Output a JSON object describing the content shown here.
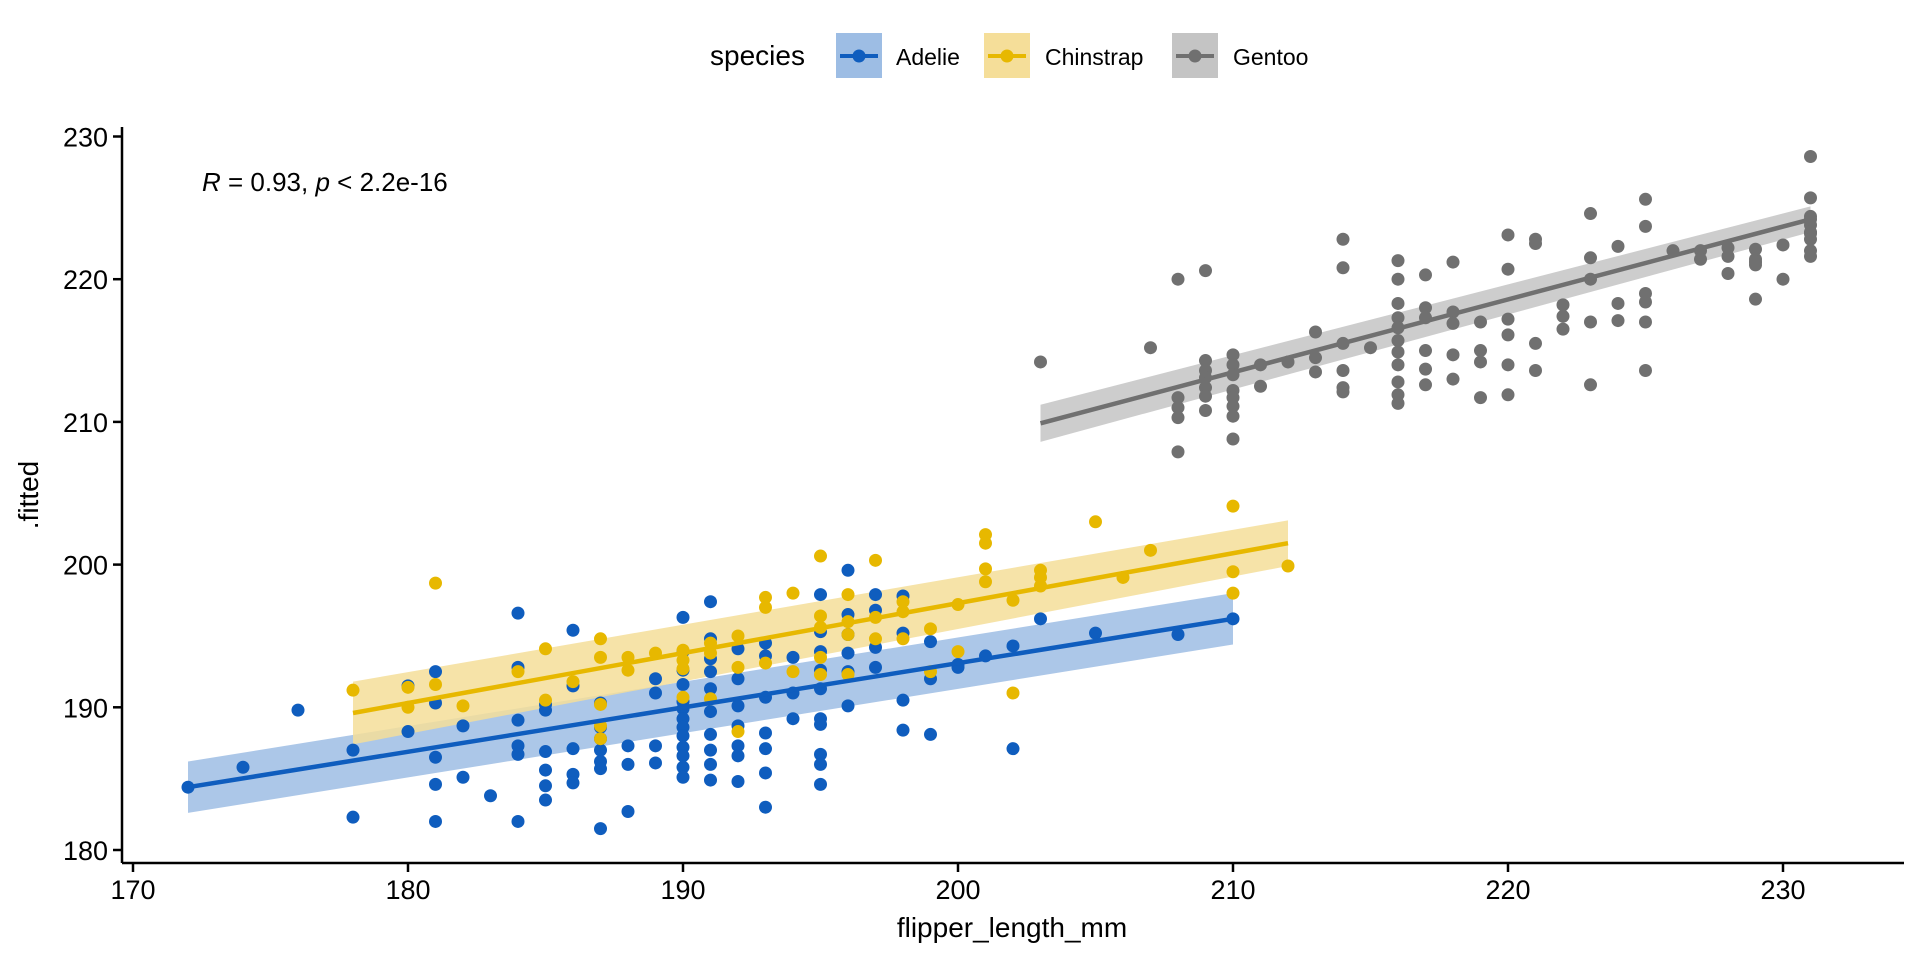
{
  "chart_data": {
    "type": "scatter",
    "xlabel": "flipper_length_mm",
    "ylabel": ".fitted",
    "xlim": [
      169.5,
      234.0
    ],
    "ylim": [
      179.3,
      230.5
    ],
    "x_ticks": [
      170,
      180,
      190,
      200,
      210,
      220,
      230
    ],
    "y_ticks": [
      180,
      190,
      200,
      210,
      220,
      230
    ],
    "annotation": {
      "r_symbol": "R",
      "r_text": " = 0.93, ",
      "p_symbol": "p",
      "p_text": " < 2.2e-16"
    },
    "legend": {
      "title": "species",
      "position": "top"
    },
    "grid": false,
    "series": [
      {
        "name": "Adelie",
        "color": "#0F5DBE",
        "band_color": "#9DBDE4",
        "fit": {
          "x": [
            172,
            210
          ],
          "y": [
            184.4,
            196.2
          ],
          "se_lo": [
            182.6,
            194.4
          ],
          "se_hi": [
            186.2,
            198.0
          ]
        },
        "points": [
          [
            172,
            184.4
          ],
          [
            174,
            185.8
          ],
          [
            176,
            189.8
          ],
          [
            178,
            187.0
          ],
          [
            178,
            182.3
          ],
          [
            180,
            191.5
          ],
          [
            180,
            188.3
          ],
          [
            181,
            192.5
          ],
          [
            181,
            190.3
          ],
          [
            181,
            186.5
          ],
          [
            181,
            184.6
          ],
          [
            181,
            182.0
          ],
          [
            182,
            188.7
          ],
          [
            182,
            185.1
          ],
          [
            183,
            183.8
          ],
          [
            184,
            196.6
          ],
          [
            184,
            192.8
          ],
          [
            184,
            189.1
          ],
          [
            184,
            187.3
          ],
          [
            184,
            186.7
          ],
          [
            184,
            182.0
          ],
          [
            185,
            190.2
          ],
          [
            185,
            189.8
          ],
          [
            185,
            186.9
          ],
          [
            185,
            185.6
          ],
          [
            185,
            184.5
          ],
          [
            185,
            183.5
          ],
          [
            186,
            195.4
          ],
          [
            186,
            191.5
          ],
          [
            186,
            187.1
          ],
          [
            186,
            185.3
          ],
          [
            186,
            184.7
          ],
          [
            187,
            190.3
          ],
          [
            187,
            188.6
          ],
          [
            187,
            187.8
          ],
          [
            187,
            187.0
          ],
          [
            187,
            186.2
          ],
          [
            187,
            185.7
          ],
          [
            187,
            181.5
          ],
          [
            188,
            187.3
          ],
          [
            188,
            186.0
          ],
          [
            188,
            182.7
          ],
          [
            189,
            192.0
          ],
          [
            189,
            191.0
          ],
          [
            189,
            187.3
          ],
          [
            189,
            186.1
          ],
          [
            190,
            196.3
          ],
          [
            190,
            193.9
          ],
          [
            190,
            192.6
          ],
          [
            190,
            191.6
          ],
          [
            190,
            190.4
          ],
          [
            190,
            189.9
          ],
          [
            190,
            189.2
          ],
          [
            190,
            188.6
          ],
          [
            190,
            188.0
          ],
          [
            190,
            187.2
          ],
          [
            190,
            186.6
          ],
          [
            190,
            185.8
          ],
          [
            190,
            185.1
          ],
          [
            191,
            197.4
          ],
          [
            191,
            194.8
          ],
          [
            191,
            193.4
          ],
          [
            191,
            192.5
          ],
          [
            191,
            191.3
          ],
          [
            191,
            189.7
          ],
          [
            191,
            188.1
          ],
          [
            191,
            187.0
          ],
          [
            191,
            186.0
          ],
          [
            191,
            184.9
          ],
          [
            192,
            194.1
          ],
          [
            192,
            192.0
          ],
          [
            192,
            190.1
          ],
          [
            192,
            188.7
          ],
          [
            192,
            187.3
          ],
          [
            192,
            186.6
          ],
          [
            192,
            184.8
          ],
          [
            193,
            194.5
          ],
          [
            193,
            193.6
          ],
          [
            193,
            190.7
          ],
          [
            193,
            188.2
          ],
          [
            193,
            187.1
          ],
          [
            193,
            185.4
          ],
          [
            193,
            183.0
          ],
          [
            194,
            193.5
          ],
          [
            194,
            191.0
          ],
          [
            194,
            189.2
          ],
          [
            195,
            197.9
          ],
          [
            195,
            195.3
          ],
          [
            195,
            193.9
          ],
          [
            195,
            192.6
          ],
          [
            195,
            191.3
          ],
          [
            195,
            189.2
          ],
          [
            195,
            188.8
          ],
          [
            195,
            186.7
          ],
          [
            195,
            186.0
          ],
          [
            195,
            184.6
          ],
          [
            196,
            199.6
          ],
          [
            196,
            196.5
          ],
          [
            196,
            195.1
          ],
          [
            196,
            193.8
          ],
          [
            196,
            192.5
          ],
          [
            196,
            190.1
          ],
          [
            197,
            197.9
          ],
          [
            197,
            196.8
          ],
          [
            197,
            194.2
          ],
          [
            197,
            192.8
          ],
          [
            198,
            197.8
          ],
          [
            198,
            195.2
          ],
          [
            198,
            190.5
          ],
          [
            198,
            188.4
          ],
          [
            199,
            194.6
          ],
          [
            199,
            192.0
          ],
          [
            199,
            188.1
          ],
          [
            200,
            193.0
          ],
          [
            200,
            192.8
          ],
          [
            201,
            193.6
          ],
          [
            202,
            194.3
          ],
          [
            202,
            187.1
          ],
          [
            203,
            196.2
          ],
          [
            205,
            195.2
          ],
          [
            208,
            195.1
          ],
          [
            210,
            196.2
          ]
        ]
      },
      {
        "name": "Chinstrap",
        "color": "#E7B800",
        "band_color": "#F5DE99",
        "fit": {
          "x": [
            178,
            212
          ],
          "y": [
            189.6,
            201.5
          ],
          "se_lo": [
            187.4,
            199.9
          ],
          "se_hi": [
            191.8,
            203.1
          ]
        },
        "points": [
          [
            178,
            191.2
          ],
          [
            180,
            190.0
          ],
          [
            180,
            191.4
          ],
          [
            181,
            198.7
          ],
          [
            181,
            191.6
          ],
          [
            182,
            190.1
          ],
          [
            184,
            192.5
          ],
          [
            185,
            194.1
          ],
          [
            185,
            190.5
          ],
          [
            186,
            191.8
          ],
          [
            187,
            194.8
          ],
          [
            187,
            193.5
          ],
          [
            187,
            190.2
          ],
          [
            187,
            188.7
          ],
          [
            187,
            187.8
          ],
          [
            188,
            193.5
          ],
          [
            188,
            192.6
          ],
          [
            189,
            193.8
          ],
          [
            190,
            194.0
          ],
          [
            190,
            193.3
          ],
          [
            190,
            192.7
          ],
          [
            190,
            190.7
          ],
          [
            191,
            194.5
          ],
          [
            191,
            193.8
          ],
          [
            191,
            190.6
          ],
          [
            192,
            195.0
          ],
          [
            192,
            192.8
          ],
          [
            192,
            188.3
          ],
          [
            193,
            197.7
          ],
          [
            193,
            197.0
          ],
          [
            193,
            193.1
          ],
          [
            194,
            198.0
          ],
          [
            194,
            192.5
          ],
          [
            195,
            200.6
          ],
          [
            195,
            196.4
          ],
          [
            195,
            195.6
          ],
          [
            195,
            193.5
          ],
          [
            195,
            192.3
          ],
          [
            196,
            197.9
          ],
          [
            196,
            196.0
          ],
          [
            196,
            195.1
          ],
          [
            196,
            192.3
          ],
          [
            197,
            200.3
          ],
          [
            197,
            196.3
          ],
          [
            197,
            194.8
          ],
          [
            198,
            197.4
          ],
          [
            198,
            196.7
          ],
          [
            198,
            194.8
          ],
          [
            199,
            195.5
          ],
          [
            199,
            192.5
          ],
          [
            200,
            197.2
          ],
          [
            200,
            193.9
          ],
          [
            201,
            202.1
          ],
          [
            201,
            201.5
          ],
          [
            201,
            199.7
          ],
          [
            201,
            198.8
          ],
          [
            202,
            197.5
          ],
          [
            202,
            191.0
          ],
          [
            203,
            199.6
          ],
          [
            203,
            199.1
          ],
          [
            203,
            198.5
          ],
          [
            205,
            203.0
          ],
          [
            206,
            199.1
          ],
          [
            207,
            201.0
          ],
          [
            210,
            204.1
          ],
          [
            210,
            199.5
          ],
          [
            210,
            198.0
          ],
          [
            212,
            199.9
          ]
        ]
      },
      {
        "name": "Gentoo",
        "color": "#707070",
        "band_color": "#C4C4C4",
        "fit": {
          "x": [
            203,
            231
          ],
          "y": [
            209.9,
            224.2
          ],
          "se_lo": [
            208.6,
            223.3
          ],
          "se_hi": [
            211.2,
            225.1
          ]
        },
        "points": [
          [
            203,
            214.2
          ],
          [
            207,
            215.2
          ],
          [
            208,
            220.0
          ],
          [
            208,
            211.7
          ],
          [
            208,
            211.0
          ],
          [
            208,
            210.3
          ],
          [
            208,
            207.9
          ],
          [
            209,
            220.6
          ],
          [
            209,
            214.3
          ],
          [
            209,
            213.6
          ],
          [
            209,
            213.1
          ],
          [
            209,
            212.4
          ],
          [
            209,
            211.8
          ],
          [
            209,
            210.8
          ],
          [
            210,
            214.7
          ],
          [
            210,
            214.0
          ],
          [
            210,
            213.3
          ],
          [
            210,
            212.2
          ],
          [
            210,
            211.7
          ],
          [
            210,
            211.1
          ],
          [
            210,
            210.4
          ],
          [
            210,
            208.8
          ],
          [
            211,
            214.0
          ],
          [
            211,
            212.5
          ],
          [
            212,
            214.2
          ],
          [
            213,
            216.3
          ],
          [
            213,
            214.5
          ],
          [
            213,
            213.5
          ],
          [
            214,
            222.8
          ],
          [
            214,
            220.8
          ],
          [
            214,
            215.5
          ],
          [
            214,
            213.6
          ],
          [
            214,
            212.4
          ],
          [
            214,
            212.1
          ],
          [
            215,
            215.2
          ],
          [
            216,
            221.3
          ],
          [
            216,
            220.0
          ],
          [
            216,
            218.3
          ],
          [
            216,
            217.3
          ],
          [
            216,
            216.6
          ],
          [
            216,
            215.7
          ],
          [
            216,
            214.9
          ],
          [
            216,
            214.0
          ],
          [
            216,
            212.8
          ],
          [
            216,
            211.9
          ],
          [
            216,
            211.3
          ],
          [
            217,
            220.3
          ],
          [
            217,
            218.0
          ],
          [
            217,
            217.3
          ],
          [
            217,
            215.0
          ],
          [
            217,
            213.7
          ],
          [
            217,
            212.6
          ],
          [
            218,
            221.2
          ],
          [
            218,
            217.7
          ],
          [
            218,
            216.9
          ],
          [
            218,
            214.7
          ],
          [
            218,
            213.0
          ],
          [
            219,
            217.0
          ],
          [
            219,
            215.0
          ],
          [
            219,
            214.2
          ],
          [
            219,
            211.7
          ],
          [
            220,
            223.1
          ],
          [
            220,
            220.7
          ],
          [
            220,
            217.2
          ],
          [
            220,
            216.1
          ],
          [
            220,
            214.0
          ],
          [
            220,
            211.9
          ],
          [
            221,
            222.5
          ],
          [
            221,
            222.8
          ],
          [
            221,
            215.5
          ],
          [
            221,
            213.6
          ],
          [
            222,
            218.2
          ],
          [
            222,
            217.4
          ],
          [
            222,
            216.5
          ],
          [
            223,
            224.6
          ],
          [
            223,
            221.5
          ],
          [
            223,
            220.0
          ],
          [
            223,
            217.0
          ],
          [
            223,
            212.6
          ],
          [
            224,
            222.3
          ],
          [
            224,
            218.3
          ],
          [
            224,
            217.1
          ],
          [
            225,
            225.6
          ],
          [
            225,
            223.7
          ],
          [
            225,
            219.0
          ],
          [
            225,
            218.4
          ],
          [
            225,
            217.0
          ],
          [
            225,
            213.6
          ],
          [
            226,
            222.0
          ],
          [
            227,
            222.0
          ],
          [
            227,
            221.4
          ],
          [
            228,
            222.2
          ],
          [
            228,
            221.6
          ],
          [
            228,
            220.4
          ],
          [
            229,
            221.4
          ],
          [
            229,
            222.1
          ],
          [
            229,
            221.2
          ],
          [
            229,
            221.0
          ],
          [
            229,
            218.6
          ],
          [
            230,
            222.4
          ],
          [
            230,
            220.0
          ],
          [
            233,
            224.4
          ],
          [
            233,
            221.6
          ],
          [
            234,
            223.3
          ],
          [
            234,
            223.8
          ],
          [
            234,
            223.2
          ],
          [
            235,
            225.7
          ],
          [
            235,
            228.6
          ],
          [
            235,
            222.8
          ],
          [
            235,
            222.0
          ],
          [
            236,
            224.2
          ]
        ]
      }
    ]
  }
}
